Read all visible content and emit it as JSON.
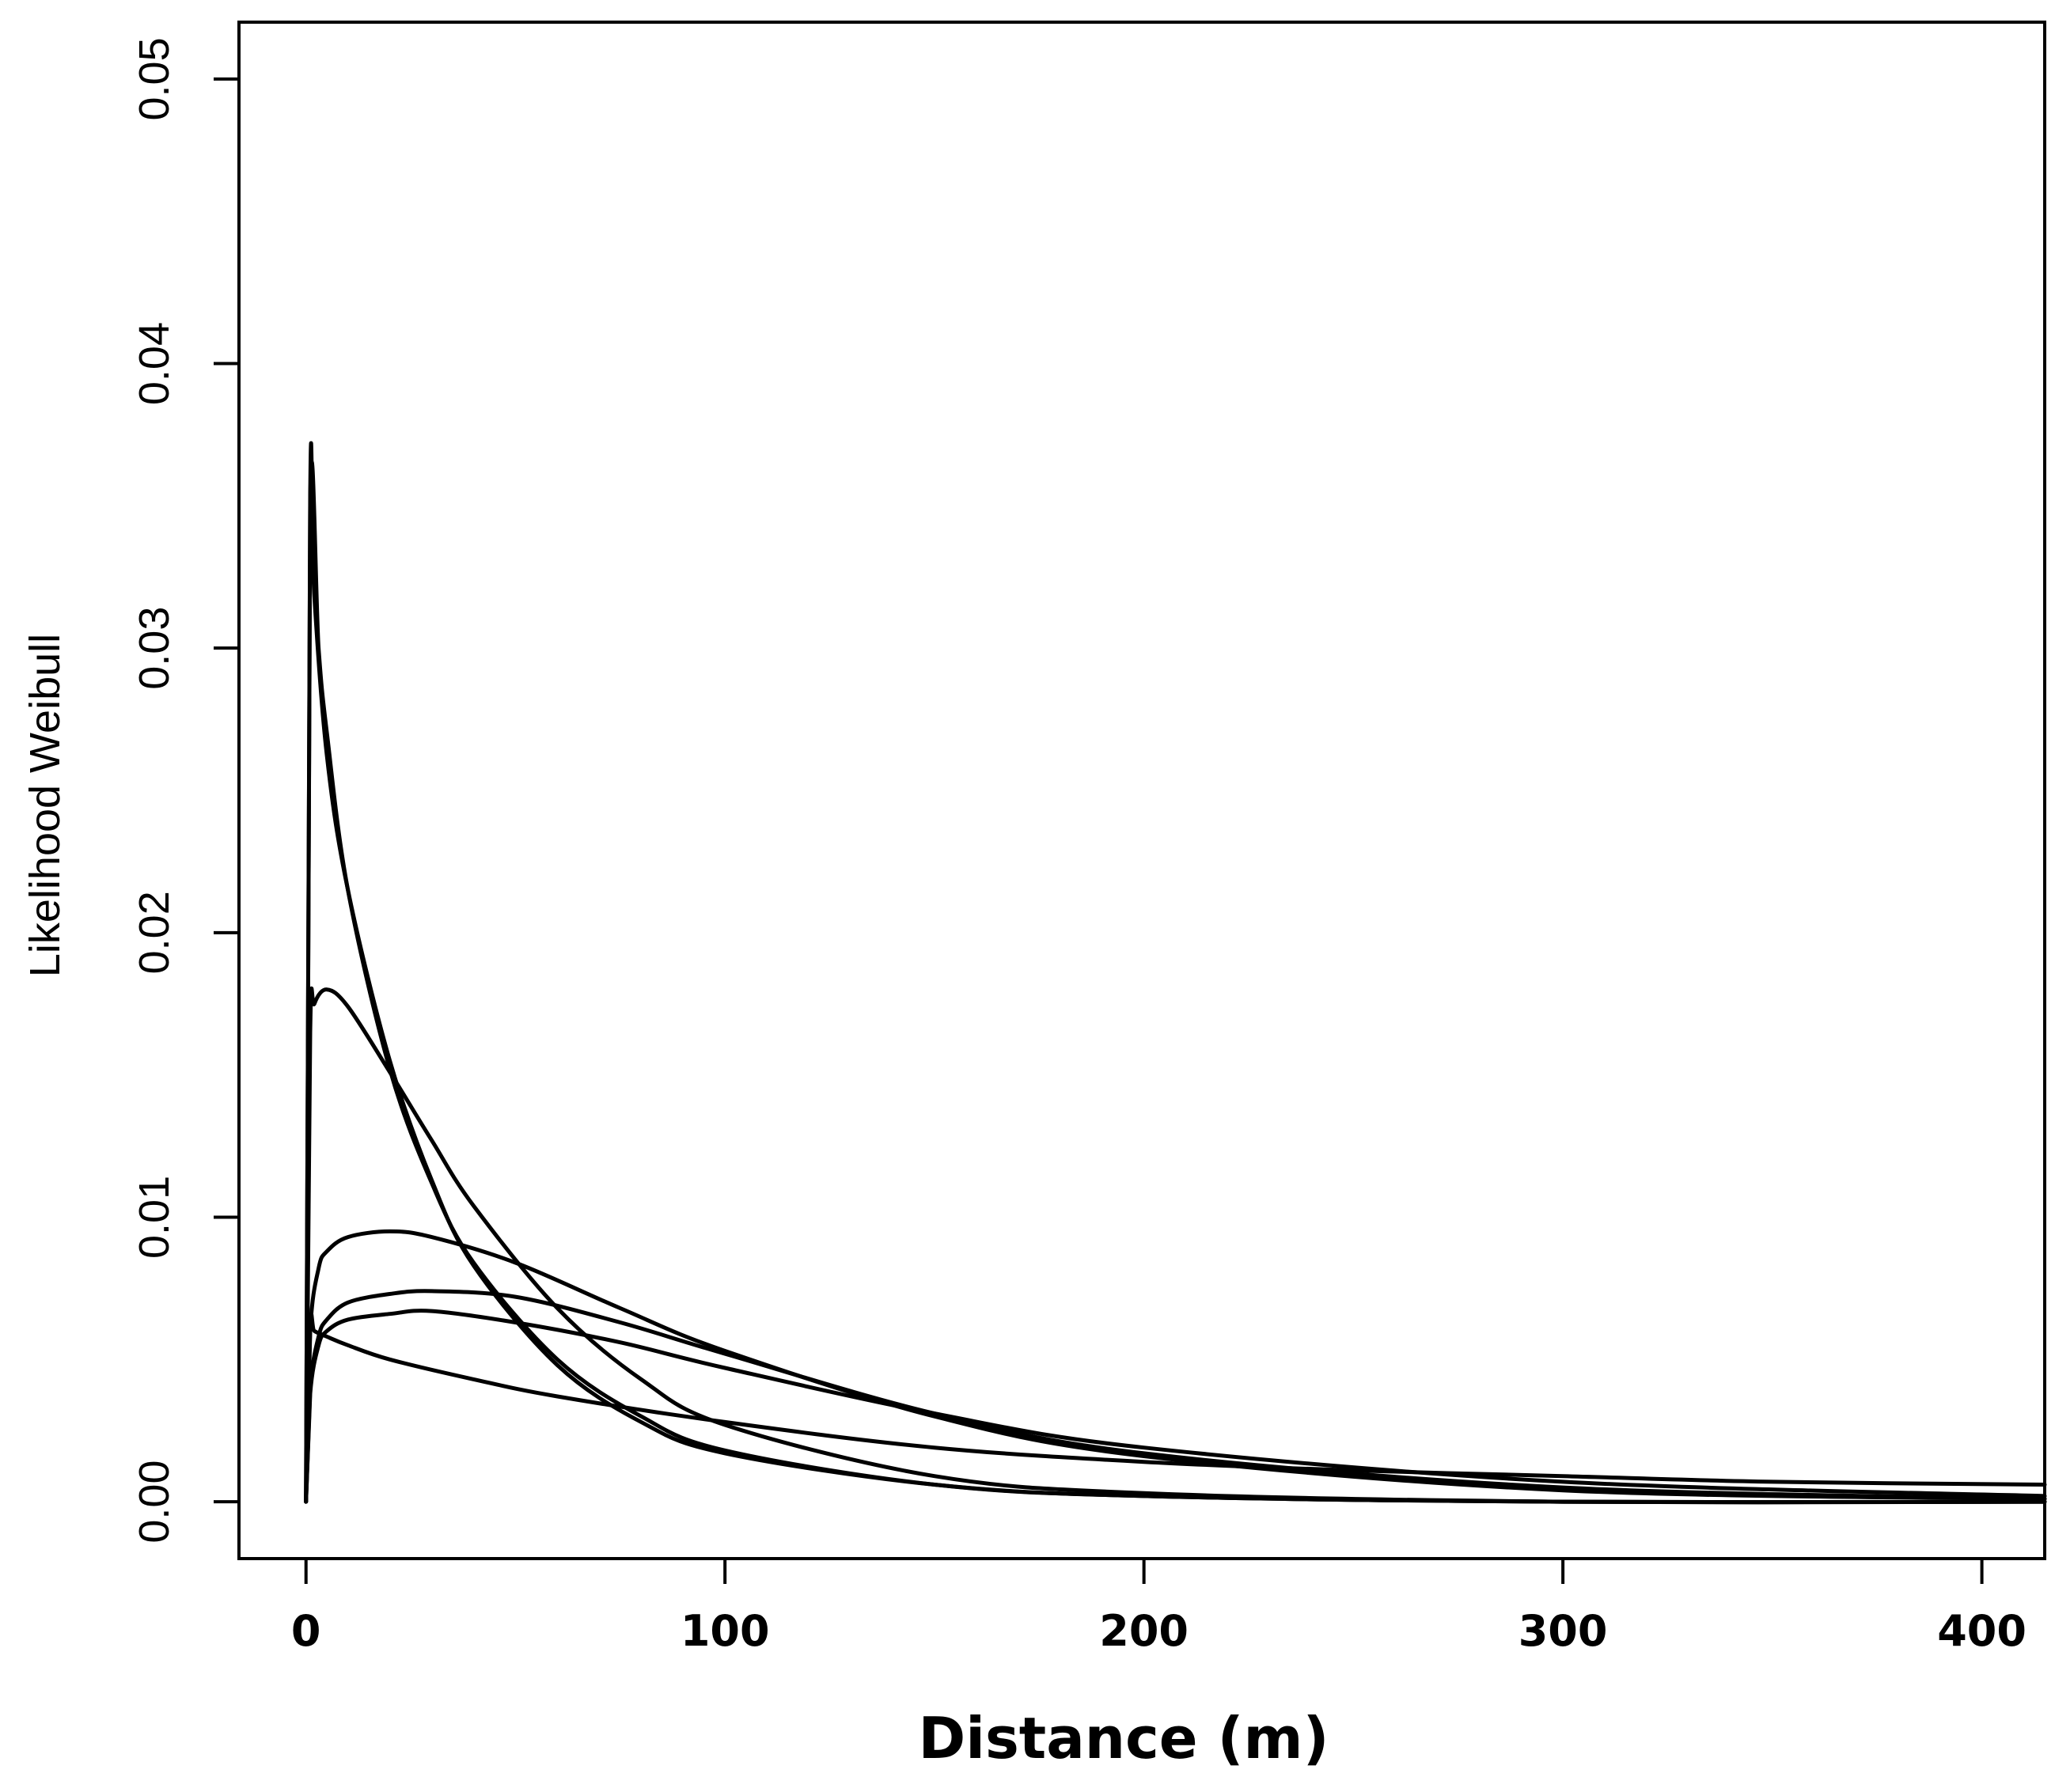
{
  "chart_data": {
    "type": "line",
    "title": "",
    "xlabel": "Distance (m)",
    "ylabel": "Likelihood Weibull",
    "xlim": [
      -16,
      415
    ],
    "ylim": [
      -0.002,
      0.052
    ],
    "x_ticks": [
      0,
      100,
      200,
      300,
      400
    ],
    "x_tick_labels": [
      "0",
      "100",
      "200",
      "300",
      "400"
    ],
    "y_ticks": [
      0.0,
      0.01,
      0.02,
      0.03,
      0.04,
      0.05
    ],
    "y_tick_labels": [
      "0.00",
      "0.01",
      "0.02",
      "0.03",
      "0.04",
      "0.05"
    ],
    "grid": false,
    "legend": "none",
    "series": [
      {
        "x": [
          0,
          1,
          2,
          5,
          10,
          20,
          30,
          40,
          60,
          80,
          100,
          150,
          200,
          300,
          415
        ],
        "y": [
          0,
          0.0353,
          0.0318,
          0.0262,
          0.0215,
          0.0155,
          0.0113,
          0.0083,
          0.0048,
          0.0028,
          0.0017,
          0.0006,
          0.0002,
          0.0,
          0.0
        ]
      },
      {
        "x": [
          0,
          1,
          3,
          5,
          10,
          20,
          30,
          40,
          60,
          80,
          100,
          150,
          200,
          300,
          415
        ],
        "y": [
          0,
          0.035,
          0.03,
          0.027,
          0.0215,
          0.0152,
          0.0112,
          0.0084,
          0.005,
          0.003,
          0.0018,
          0.0006,
          0.0002,
          0.0,
          0.0
        ]
      },
      {
        "x": [
          0,
          1,
          2,
          5,
          10,
          20,
          30,
          40,
          60,
          80,
          100,
          150,
          200,
          300,
          415
        ],
        "y": [
          0,
          0.0165,
          0.0175,
          0.018,
          0.0174,
          0.0151,
          0.0127,
          0.0104,
          0.0068,
          0.0043,
          0.0027,
          0.0009,
          0.0003,
          0.0,
          0.0
        ]
      },
      {
        "x": [
          0,
          1,
          3,
          5,
          10,
          20,
          30,
          50,
          75,
          100,
          150,
          200,
          300,
          415
        ],
        "y": [
          0,
          0.006,
          0.0082,
          0.0088,
          0.0093,
          0.0095,
          0.0093,
          0.0084,
          0.0068,
          0.0053,
          0.003,
          0.0016,
          0.0004,
          0.0001
        ]
      },
      {
        "x": [
          0,
          1,
          3,
          5,
          10,
          20,
          30,
          50,
          75,
          100,
          150,
          200,
          300,
          415
        ],
        "y": [
          0,
          0.004,
          0.0058,
          0.0064,
          0.007,
          0.0073,
          0.0074,
          0.0072,
          0.0063,
          0.0052,
          0.0031,
          0.0017,
          0.0005,
          0.0001
        ]
      },
      {
        "x": [
          0,
          1,
          3,
          5,
          10,
          20,
          30,
          50,
          75,
          100,
          150,
          200,
          300,
          415
        ],
        "y": [
          0,
          0.0038,
          0.0055,
          0.006,
          0.0064,
          0.0066,
          0.0067,
          0.0063,
          0.0056,
          0.0047,
          0.0031,
          0.0019,
          0.0007,
          0.0002
        ]
      },
      {
        "x": [
          0,
          1,
          2,
          5,
          10,
          20,
          40,
          60,
          100,
          150,
          200,
          250,
          300,
          350,
          415
        ],
        "y": [
          0.0,
          0.0062,
          0.006,
          0.0058,
          0.0055,
          0.005,
          0.0043,
          0.0037,
          0.0028,
          0.0019,
          0.0014,
          0.0011,
          0.0009,
          0.0007,
          0.0006
        ]
      }
    ]
  }
}
